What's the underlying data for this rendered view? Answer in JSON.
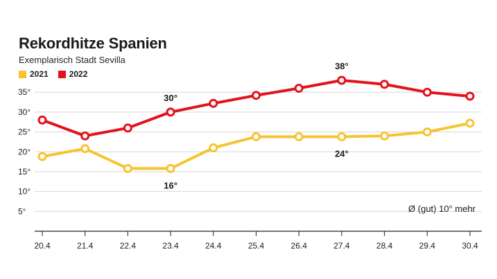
{
  "header": {
    "title": "Rekordhitze Spanien",
    "subtitle": "Exemplarisch Stadt Sevilla"
  },
  "legend": [
    {
      "label": "2021",
      "color": "#f6c431"
    },
    {
      "label": "2022",
      "color": "#e3121c"
    }
  ],
  "note": "Ø (gut) 10° mehr",
  "annotations": [
    {
      "text": "30°",
      "series": "2022",
      "index": 3,
      "pos": "above"
    },
    {
      "text": "38°",
      "series": "2022",
      "index": 7,
      "pos": "above"
    },
    {
      "text": "16°",
      "series": "2021",
      "index": 3,
      "pos": "below"
    },
    {
      "text": "24°",
      "series": "2021",
      "index": 7,
      "pos": "below"
    }
  ],
  "chart_data": {
    "type": "line",
    "title": "Rekordhitze Spanien",
    "subtitle": "Exemplarisch Stadt Sevilla",
    "categories": [
      "20.4",
      "21.4",
      "22.4",
      "23.4",
      "24.4",
      "25.4",
      "26.4",
      "27.4",
      "28.4",
      "29.4",
      "30.4"
    ],
    "series": [
      {
        "name": "2021",
        "color": "#f6c431",
        "values": [
          18.8,
          20.8,
          15.8,
          15.8,
          21.0,
          23.8,
          23.8,
          23.8,
          24.0,
          25.0,
          27.2
        ]
      },
      {
        "name": "2022",
        "color": "#e3121c",
        "values": [
          28.0,
          24.0,
          26.0,
          30.0,
          32.2,
          34.2,
          36.0,
          38.0,
          37.0,
          35.0,
          34.0
        ]
      }
    ],
    "yticks": [
      "5°",
      "10°",
      "15°",
      "20°",
      "25°",
      "30°",
      "35°"
    ],
    "ytick_values": [
      5,
      10,
      15,
      20,
      25,
      30,
      35
    ],
    "ylim": [
      0,
      38
    ],
    "grid": true,
    "legend_position": "top-left"
  }
}
